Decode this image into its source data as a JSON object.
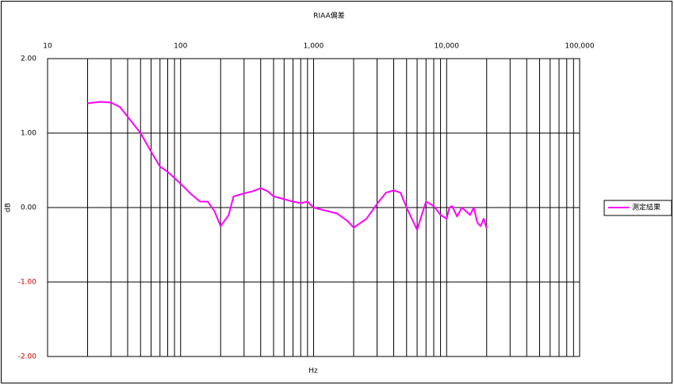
{
  "chart_data": {
    "type": "line",
    "title": "RIAA偏差",
    "x_label": "Hz",
    "y_label": "dB",
    "x": [
      20,
      25,
      30,
      35,
      40,
      50,
      60,
      70,
      80,
      100,
      120,
      140,
      160,
      180,
      200,
      230,
      250,
      300,
      350,
      400,
      450,
      500,
      700,
      800,
      900,
      1000,
      1500,
      1800,
      2000,
      2500,
      3000,
      3500,
      4000,
      4500,
      5000,
      6000,
      6500,
      7000,
      8000,
      9000,
      10000,
      10500,
      11000,
      12000,
      13000,
      14000,
      15000,
      16000,
      17000,
      18000,
      19000,
      20000
    ],
    "series": [
      {
        "name": "測定結果",
        "color": "#ff00ff",
        "values": [
          1.4,
          1.42,
          1.41,
          1.35,
          1.22,
          1.0,
          0.75,
          0.55,
          0.48,
          0.32,
          0.18,
          0.08,
          0.08,
          -0.05,
          -0.25,
          -0.1,
          0.15,
          0.19,
          0.22,
          0.26,
          0.22,
          0.15,
          0.08,
          0.06,
          0.08,
          0.0,
          -0.08,
          -0.18,
          -0.27,
          -0.15,
          0.05,
          0.2,
          0.23,
          0.2,
          0.0,
          -0.3,
          -0.1,
          0.08,
          0.02,
          -0.1,
          -0.15,
          0.0,
          0.02,
          -0.12,
          0.0,
          -0.05,
          -0.1,
          0.0,
          -0.2,
          -0.25,
          -0.15,
          -0.28
        ]
      }
    ],
    "xlim": [
      10,
      100000
    ],
    "xscale": "log",
    "xticks": [
      10,
      100,
      {
        "value": 1000,
        "label": "1,000"
      },
      {
        "value": 10000,
        "label": "10,000"
      },
      {
        "value": 100000,
        "label": "100,000"
      }
    ],
    "ylim": [
      -2,
      2
    ],
    "yticks": [
      {
        "value": 2,
        "label": "2.00"
      },
      {
        "value": 1,
        "label": "1.00"
      },
      {
        "value": 0,
        "label": "0.00"
      },
      {
        "value": -1,
        "label": "-1.00"
      },
      {
        "value": -2,
        "label": "-2.00"
      }
    ],
    "negative_tick_color": "#c00000",
    "grid": true,
    "minor_grid": true,
    "legend": "right"
  }
}
